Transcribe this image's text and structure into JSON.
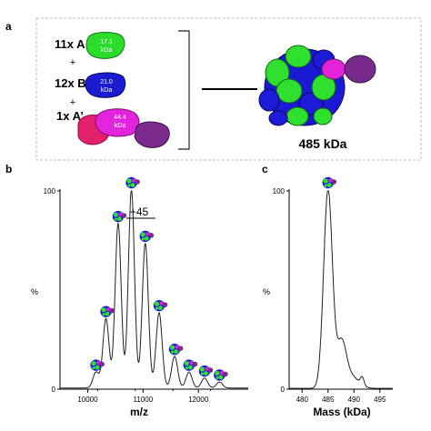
{
  "panel_a": {
    "label": "a",
    "rows": [
      {
        "count": "11x A",
        "mass": "17.1",
        "unit": "kDa",
        "color": "#22dd22"
      },
      {
        "count": "12x B",
        "mass": "21.0",
        "unit": "kDa",
        "color": "#1a1acc"
      },
      {
        "count": "1x A’",
        "mass": "44.4",
        "unit": "kDa",
        "color": "#dd22cc"
      }
    ],
    "plus": "+",
    "complex_mass": "485 kDa",
    "colors": {
      "green": "#2fe02f",
      "blue": "#1d1ad8",
      "magenta": "#e223d8",
      "purple": "#7a2a8c",
      "pink": "#e0206a"
    }
  },
  "chart_data": [
    {
      "panel": "b",
      "type": "line",
      "xlabel": "m/z",
      "ylabel": "%",
      "xlim": [
        9500,
        12900
      ],
      "ylim": [
        0,
        100
      ],
      "xticks": [
        10000,
        11000,
        12000
      ],
      "yticks": [
        0,
        100
      ],
      "annotation": "+45",
      "peaks": [
        {
          "x": 10150,
          "y": 8
        },
        {
          "x": 10330,
          "y": 35
        },
        {
          "x": 10550,
          "y": 83
        },
        {
          "x": 10790,
          "y": 100
        },
        {
          "x": 11040,
          "y": 73
        },
        {
          "x": 11290,
          "y": 38
        },
        {
          "x": 11570,
          "y": 16
        },
        {
          "x": 11830,
          "y": 8
        },
        {
          "x": 12110,
          "y": 5
        },
        {
          "x": 12380,
          "y": 3
        }
      ]
    },
    {
      "panel": "c",
      "type": "line",
      "xlabel": "Mass (kDa)",
      "ylabel": "%",
      "xlim": [
        477.5,
        497.5
      ],
      "ylim": [
        0,
        100
      ],
      "xticks": [
        480,
        485,
        490,
        495
      ],
      "yticks": [
        0,
        100
      ],
      "peak_x": 485,
      "peak_y": 100
    }
  ]
}
